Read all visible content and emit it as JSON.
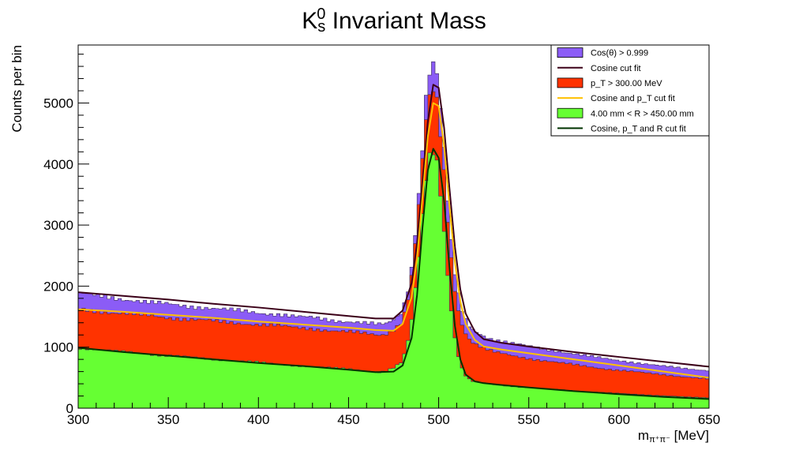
{
  "chart_data": {
    "type": "bar",
    "title": {
      "base": "K",
      "sub": "s",
      "sup": "0",
      "rest": " Invariant Mass"
    },
    "xlabel": {
      "base": "m",
      "sub": "π⁺π⁻",
      "unit": " [MeV]"
    },
    "ylabel": "Counts per bin",
    "xlim": [
      300,
      650
    ],
    "ylim": [
      0,
      5950
    ],
    "x_ticks": [
      "300",
      "350",
      "400",
      "450",
      "500",
      "550",
      "600",
      "650"
    ],
    "y_ticks": [
      "0",
      "1000",
      "2000",
      "3000",
      "4000",
      "5000"
    ],
    "bin_width": 2,
    "legend_position": "top-right",
    "histograms": [
      {
        "name": "Cos(θ) > 0.999",
        "color": "#8b5cf6",
        "x": [
          301,
          311,
          321,
          331,
          341,
          351,
          361,
          371,
          381,
          391,
          401,
          411,
          421,
          431,
          441,
          451,
          461,
          467,
          471,
          475,
          479,
          481,
          483,
          485,
          487,
          489,
          491,
          493,
          495,
          497,
          499,
          501,
          503,
          505,
          507,
          509,
          511,
          513,
          515,
          517,
          519,
          523,
          527,
          531,
          541,
          551,
          561,
          571,
          581,
          591,
          601,
          611,
          621,
          631,
          641,
          649
        ],
        "y": [
          1880,
          1840,
          1800,
          1770,
          1730,
          1700,
          1670,
          1650,
          1620,
          1590,
          1560,
          1540,
          1500,
          1480,
          1440,
          1420,
          1390,
          1370,
          1380,
          1450,
          1560,
          1720,
          1950,
          2300,
          2900,
          3500,
          4300,
          5100,
          5500,
          5650,
          5450,
          4900,
          4200,
          3400,
          2700,
          2200,
          1850,
          1600,
          1450,
          1350,
          1290,
          1220,
          1160,
          1120,
          1060,
          1010,
          960,
          910,
          860,
          820,
          780,
          740,
          700,
          670,
          640,
          620
        ]
      },
      {
        "name": "p_T > 300.00 MeV",
        "color": "#ff3300",
        "x": [
          301,
          311,
          321,
          331,
          341,
          351,
          361,
          371,
          381,
          391,
          401,
          411,
          421,
          431,
          441,
          451,
          461,
          467,
          471,
          475,
          479,
          481,
          483,
          485,
          487,
          489,
          491,
          493,
          495,
          497,
          499,
          501,
          503,
          505,
          507,
          509,
          511,
          513,
          515,
          517,
          519,
          523,
          527,
          531,
          541,
          551,
          561,
          571,
          581,
          591,
          601,
          611,
          621,
          631,
          641,
          649
        ],
        "y": [
          1620,
          1590,
          1560,
          1540,
          1510,
          1480,
          1460,
          1440,
          1410,
          1390,
          1370,
          1350,
          1320,
          1300,
          1270,
          1250,
          1220,
          1200,
          1220,
          1290,
          1400,
          1560,
          1800,
          2150,
          2700,
          3300,
          4050,
          4700,
          5050,
          5200,
          5000,
          4500,
          3850,
          3100,
          2450,
          1950,
          1600,
          1380,
          1230,
          1140,
          1080,
          1010,
          960,
          920,
          860,
          810,
          770,
          730,
          690,
          650,
          620,
          590,
          560,
          530,
          500,
          480
        ]
      },
      {
        "name": "4.00 mm < R > 450.00 mm",
        "color": "#66ff33",
        "x": [
          301,
          311,
          321,
          331,
          341,
          351,
          361,
          371,
          381,
          391,
          401,
          411,
          421,
          431,
          441,
          451,
          461,
          467,
          471,
          475,
          479,
          481,
          483,
          485,
          487,
          489,
          491,
          493,
          495,
          497,
          499,
          501,
          503,
          505,
          507,
          509,
          511,
          513,
          515,
          517,
          519,
          523,
          527,
          531,
          541,
          551,
          561,
          571,
          581,
          591,
          601,
          611,
          621,
          631,
          641,
          649
        ],
        "y": [
          990,
          960,
          930,
          910,
          880,
          860,
          840,
          810,
          790,
          770,
          750,
          720,
          700,
          680,
          660,
          640,
          610,
          590,
          610,
          660,
          740,
          880,
          1100,
          1450,
          1950,
          2500,
          3150,
          3800,
          4150,
          4250,
          4050,
          3550,
          2900,
          2200,
          1600,
          1150,
          850,
          650,
          530,
          470,
          440,
          420,
          400,
          385,
          360,
          335,
          315,
          295,
          275,
          255,
          240,
          225,
          210,
          195,
          180,
          170
        ]
      }
    ],
    "fits": [
      {
        "name": "Cosine cut fit",
        "color": "#3b0018",
        "x": [
          300,
          325,
          350,
          375,
          400,
          425,
          450,
          465,
          475,
          480,
          485,
          488,
          491,
          494,
          497,
          500,
          503,
          506,
          509,
          512,
          515,
          520,
          525,
          535,
          550,
          575,
          600,
          625,
          650
        ],
        "y": [
          1900,
          1840,
          1780,
          1710,
          1650,
          1580,
          1510,
          1470,
          1470,
          1600,
          2050,
          2700,
          3700,
          4700,
          5300,
          5250,
          4600,
          3600,
          2650,
          1950,
          1550,
          1260,
          1130,
          1070,
          1010,
          920,
          840,
          760,
          680
        ]
      },
      {
        "name": "Cosine and p_T cut fit",
        "color": "#ffc000",
        "x": [
          300,
          325,
          350,
          375,
          400,
          425,
          450,
          465,
          475,
          480,
          485,
          488,
          491,
          494,
          497,
          500,
          503,
          506,
          509,
          512,
          515,
          520,
          525,
          535,
          550,
          575,
          600,
          625,
          650
        ],
        "y": [
          1620,
          1580,
          1530,
          1480,
          1420,
          1370,
          1320,
          1280,
          1270,
          1380,
          1820,
          2450,
          3450,
          4450,
          5000,
          4950,
          4300,
          3300,
          2400,
          1750,
          1380,
          1120,
          1010,
          960,
          900,
          800,
          700,
          600,
          500
        ]
      },
      {
        "name": "Cosine, p_T and R cut fit",
        "color": "#003300",
        "x": [
          300,
          325,
          350,
          375,
          400,
          425,
          450,
          465,
          475,
          480,
          485,
          488,
          491,
          494,
          497,
          500,
          503,
          506,
          509,
          512,
          515,
          520,
          525,
          535,
          550,
          575,
          600,
          625,
          650
        ],
        "y": [
          990,
          920,
          860,
          800,
          740,
          690,
          630,
          590,
          600,
          700,
          1150,
          1850,
          2950,
          3900,
          4250,
          4100,
          3400,
          2300,
          1350,
          800,
          550,
          440,
          410,
          380,
          340,
          280,
          230,
          185,
          150
        ]
      }
    ],
    "legend_order": [
      {
        "kind": "box",
        "label": "Cos(θ) > 0.999",
        "color": "#8b5cf6"
      },
      {
        "kind": "line",
        "label": "Cosine cut fit",
        "color": "#3b0018"
      },
      {
        "kind": "box",
        "label": "p_T > 300.00 MeV",
        "color": "#ff3300"
      },
      {
        "kind": "line",
        "label": "Cosine and p_T cut fit",
        "color": "#ffc000"
      },
      {
        "kind": "box",
        "label": "4.00 mm < R > 450.00 mm",
        "color": "#66ff33"
      },
      {
        "kind": "line",
        "label": "Cosine, p_T and R cut fit",
        "color": "#003300"
      }
    ]
  }
}
